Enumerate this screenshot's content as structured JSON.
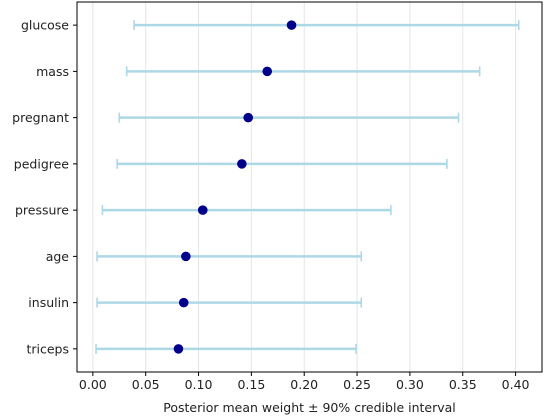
{
  "chart_data": {
    "type": "scatter",
    "title": "",
    "xlabel": "Posterior mean weight ± 90% credible interval",
    "ylabel": "",
    "xlim": [
      -0.015,
      0.425
    ],
    "x_ticks": [
      0.0,
      0.05,
      0.1,
      0.15,
      0.2,
      0.25,
      0.3,
      0.35,
      0.4
    ],
    "x_tick_labels": [
      "0.00",
      "0.05",
      "0.10",
      "0.15",
      "0.20",
      "0.25",
      "0.30",
      "0.35",
      "0.40"
    ],
    "grid": "vertical",
    "categories": [
      "glucose",
      "mass",
      "pregnant",
      "pedigree",
      "pressure",
      "age",
      "insulin",
      "triceps"
    ],
    "mean": [
      0.188,
      0.165,
      0.147,
      0.141,
      0.104,
      0.088,
      0.086,
      0.081
    ],
    "lower": [
      0.039,
      0.032,
      0.025,
      0.023,
      0.009,
      0.004,
      0.004,
      0.003
    ],
    "upper": [
      0.403,
      0.366,
      0.346,
      0.335,
      0.282,
      0.254,
      0.254,
      0.249
    ],
    "colors": {
      "point": "#00008b",
      "interval": "#add8e6",
      "grid": "#e5e5e5",
      "axis": "#000000"
    }
  }
}
